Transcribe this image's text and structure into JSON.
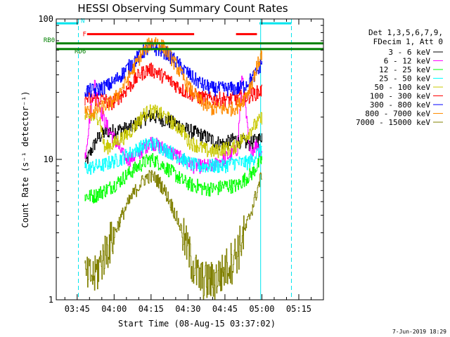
{
  "chart_data": {
    "type": "line",
    "title": "HESSI Observing Summary Count Rates",
    "xlabel": "Start Time (08-Aug-15 03:37:02)",
    "ylabel": "Count Rate (s⁻¹ detector⁻¹)",
    "yscale": "log",
    "ylim": [
      1,
      100
    ],
    "xlim": [
      -8.5,
      100
    ],
    "x_units": "minutes after 03:45",
    "x_ticks": [
      {
        "x": 0,
        "label": "03:45"
      },
      {
        "x": 15,
        "label": "04:00"
      },
      {
        "x": 30,
        "label": "04:15"
      },
      {
        "x": 45,
        "label": "04:30"
      },
      {
        "x": 60,
        "label": "04:45"
      },
      {
        "x": 75,
        "label": "05:00"
      },
      {
        "x": 90,
        "label": "05:15"
      }
    ],
    "y_ticks": [
      {
        "y": 1,
        "label": "1"
      },
      {
        "y": 10,
        "label": "10"
      },
      {
        "y": 100,
        "label": "100"
      }
    ],
    "legend": {
      "position": "right",
      "header": [
        "Det 1,3,5,6,7,9,",
        "FDecim 1, Att 0"
      ]
    },
    "series": [
      {
        "name": "3 - 6 keV",
        "color": "#000000",
        "x": [
          3,
          5,
          8,
          12,
          14,
          16,
          18,
          20,
          22,
          24,
          26,
          28,
          30,
          32,
          34,
          36,
          38,
          40,
          42,
          44,
          46,
          48,
          50,
          52,
          54,
          56,
          58,
          60,
          62,
          64,
          66,
          70,
          72,
          74,
          75
        ],
        "y": [
          9,
          11,
          14,
          16,
          16,
          16,
          16.5,
          16.5,
          17,
          18,
          19,
          20,
          20.5,
          20,
          19.5,
          19,
          18.5,
          18,
          17.5,
          16.5,
          16,
          15.5,
          15,
          14.5,
          14,
          13.5,
          13,
          13,
          13.5,
          14,
          13.5,
          13,
          13.5,
          14,
          15
        ]
      },
      {
        "name": "6 - 12 keV",
        "color": "#ff00ff",
        "x": [
          3,
          5,
          7,
          9,
          11,
          13,
          15,
          17,
          19,
          21,
          23,
          25,
          27,
          29,
          30,
          31,
          33,
          35,
          37,
          39,
          41,
          43,
          45,
          47,
          49,
          51,
          53,
          55,
          57,
          59,
          61,
          63,
          65,
          67,
          70,
          73,
          75
        ],
        "y": [
          10,
          20,
          35,
          24,
          19,
          16,
          14,
          12,
          10.5,
          10,
          10.5,
          11,
          12,
          13,
          13.5,
          13,
          12.5,
          12,
          11.5,
          11,
          10.5,
          10,
          9.5,
          9,
          9,
          9,
          9,
          9,
          9.5,
          10,
          10.5,
          11,
          12,
          40,
          11,
          13,
          11
        ]
      },
      {
        "name": "12 - 25 keV",
        "color": "#00ff00",
        "x": [
          3,
          5,
          7,
          9,
          11,
          13,
          15,
          17,
          19,
          21,
          23,
          25,
          27,
          29,
          31,
          33,
          35,
          37,
          39,
          41,
          43,
          45,
          47,
          49,
          51,
          53,
          55,
          57,
          59,
          61,
          63,
          65,
          67,
          69,
          71,
          73,
          75
        ],
        "y": [
          5.5,
          5.5,
          5.5,
          5.8,
          6,
          6.3,
          6.6,
          7,
          7.5,
          8,
          8.5,
          9,
          9.5,
          10,
          10,
          9.5,
          9,
          8.5,
          8,
          7.5,
          7,
          6.8,
          6.5,
          6.5,
          6.2,
          6.2,
          6.2,
          6.2,
          6.5,
          6.5,
          6.5,
          6.5,
          7,
          7.5,
          8,
          9,
          10
        ]
      },
      {
        "name": "25 - 50 keV",
        "color": "#00ffff",
        "x": [
          3,
          5,
          7,
          9,
          11,
          13,
          15,
          17,
          19,
          21,
          23,
          25,
          27,
          29,
          31,
          33,
          35,
          37,
          39,
          41,
          43,
          45,
          47,
          49,
          51,
          53,
          55,
          57,
          59,
          61,
          63,
          65,
          67,
          69,
          71,
          73,
          75
        ],
        "y": [
          8.7,
          8.7,
          9,
          9,
          9.2,
          9.5,
          9.8,
          10,
          10.5,
          11,
          11.5,
          12,
          12.5,
          13,
          13,
          12.5,
          12,
          11.5,
          11,
          10.5,
          10,
          9.5,
          9.2,
          9,
          9,
          9,
          9,
          9,
          9,
          9.2,
          9.5,
          9.5,
          9.5,
          9.5,
          10,
          11,
          12
        ]
      },
      {
        "name": "50 - 100 keV",
        "color": "#c8c800",
        "x": [
          3,
          5,
          7,
          9,
          11,
          13,
          15,
          17,
          19,
          21,
          23,
          25,
          27,
          29,
          31,
          33,
          35,
          37,
          39,
          41,
          43,
          44.5,
          45,
          47,
          49,
          51,
          53,
          55,
          57,
          59,
          61,
          63,
          65,
          67,
          69,
          71,
          73,
          75
        ],
        "y": [
          20,
          20,
          20,
          20,
          12,
          12.5,
          13,
          14,
          14.5,
          15.5,
          17,
          19,
          21,
          22,
          22,
          21.5,
          20.5,
          19.5,
          18,
          17,
          16,
          14,
          13.5,
          13,
          12.5,
          12,
          11.5,
          11.5,
          11.5,
          12,
          12,
          12,
          13,
          14,
          15,
          17,
          18,
          20
        ]
      },
      {
        "name": "100 - 300 keV",
        "color": "#ff0000",
        "x": [
          3,
          5,
          7,
          9,
          11,
          13,
          15,
          17,
          19,
          21,
          23,
          25,
          27,
          29,
          31,
          33,
          35,
          37,
          39,
          41,
          43,
          45,
          47,
          49,
          51,
          53,
          55,
          57,
          59,
          61,
          63,
          65,
          67,
          69,
          71,
          73,
          75
        ],
        "y": [
          27,
          27,
          27,
          27,
          27,
          25,
          26,
          28,
          30,
          33,
          36,
          40,
          42,
          44,
          43,
          41,
          39,
          37,
          35,
          33,
          31,
          30,
          29,
          28,
          27.5,
          27,
          27,
          27,
          27,
          27,
          27,
          27.5,
          28,
          28,
          29,
          30,
          31
        ]
      },
      {
        "name": "300 - 800 keV",
        "color": "#0000ff",
        "x": [
          3,
          5,
          7,
          9,
          11,
          13,
          15,
          17,
          19,
          21,
          23,
          25,
          27,
          29,
          31,
          33,
          35,
          37,
          39,
          41,
          43,
          45,
          47,
          49,
          51,
          53,
          55,
          57,
          59,
          61,
          63,
          65,
          67,
          69,
          71,
          73,
          75
        ],
        "y": [
          31,
          31,
          31,
          32,
          33,
          34,
          36,
          39,
          42,
          46,
          50,
          55,
          59,
          62,
          62,
          61,
          59,
          56,
          52,
          48,
          44,
          41,
          38,
          36,
          34,
          33,
          32,
          32,
          32,
          32,
          32,
          32,
          33,
          35,
          38,
          42,
          50
        ]
      },
      {
        "name": "800 - 7000 keV",
        "color": "#ff8c00",
        "x": [
          3,
          5,
          7,
          9,
          11,
          13,
          15,
          17,
          19,
          21,
          23,
          25,
          27,
          29,
          31,
          33,
          35,
          37,
          39,
          41,
          43,
          45,
          47,
          49,
          51,
          53,
          55,
          57,
          59,
          61,
          63,
          65,
          67,
          69,
          71,
          73,
          75
        ],
        "y": [
          22,
          22,
          22,
          23,
          24,
          25,
          27,
          30,
          34,
          39,
          45,
          52,
          60,
          66,
          70,
          68,
          63,
          57,
          50,
          44,
          38,
          33,
          30,
          27,
          25,
          24,
          23,
          23,
          23,
          23,
          23,
          24,
          26,
          30,
          36,
          46,
          58
        ]
      },
      {
        "name": "7000 - 15000 keV",
        "color": "#808000",
        "x": [
          3,
          5,
          7,
          9,
          11,
          13,
          15,
          17,
          19,
          21,
          23,
          25,
          27,
          29,
          31,
          33,
          35,
          37,
          39,
          41,
          43,
          45,
          47,
          49,
          51,
          53,
          55,
          57,
          59,
          61,
          63,
          65,
          67,
          69,
          71,
          73,
          75
        ],
        "y": [
          1.5,
          1.5,
          1.5,
          1.8,
          2.2,
          2.6,
          3.0,
          3.6,
          4.3,
          5.0,
          5.8,
          6.5,
          7.2,
          7.6,
          7.5,
          7.0,
          6.2,
          5.3,
          4.4,
          3.6,
          2.9,
          2.3,
          1.8,
          1.5,
          1.4,
          1.4,
          1.4,
          1.5,
          1.6,
          1.8,
          2.0,
          2.3,
          2.8,
          3.5,
          4.5,
          6.0,
          8.0
        ]
      }
    ],
    "flags": [
      {
        "name": "N",
        "color": "#00e5ee",
        "y": 93,
        "segments": [
          [
            -8.5,
            0.5
          ],
          [
            74,
            87
          ]
        ]
      },
      {
        "name": "F",
        "color": "#ff0000",
        "y": 78,
        "segments": [
          [
            4,
            47.5
          ],
          [
            64.5,
            73
          ]
        ]
      },
      {
        "name": "RB0",
        "color": "#008000",
        "y": 67,
        "segments": [
          [
            -8.5,
            100
          ]
        ]
      },
      {
        "name": "RD6",
        "color": "#008000",
        "y": 61,
        "segments": [
          [
            -8.5,
            100
          ]
        ]
      }
    ],
    "vlines": [
      {
        "x": -8.5,
        "color": "#00e5ee",
        "style": "solid"
      },
      {
        "x": 0.5,
        "color": "#00e5ee",
        "style": "dashed"
      },
      {
        "x": 74.5,
        "color": "#00e5ee",
        "style": "solid"
      },
      {
        "x": 87,
        "color": "#00e5ee",
        "style": "dashed"
      }
    ]
  },
  "footer": {
    "date": "7-Jun-2019 18:29"
  }
}
